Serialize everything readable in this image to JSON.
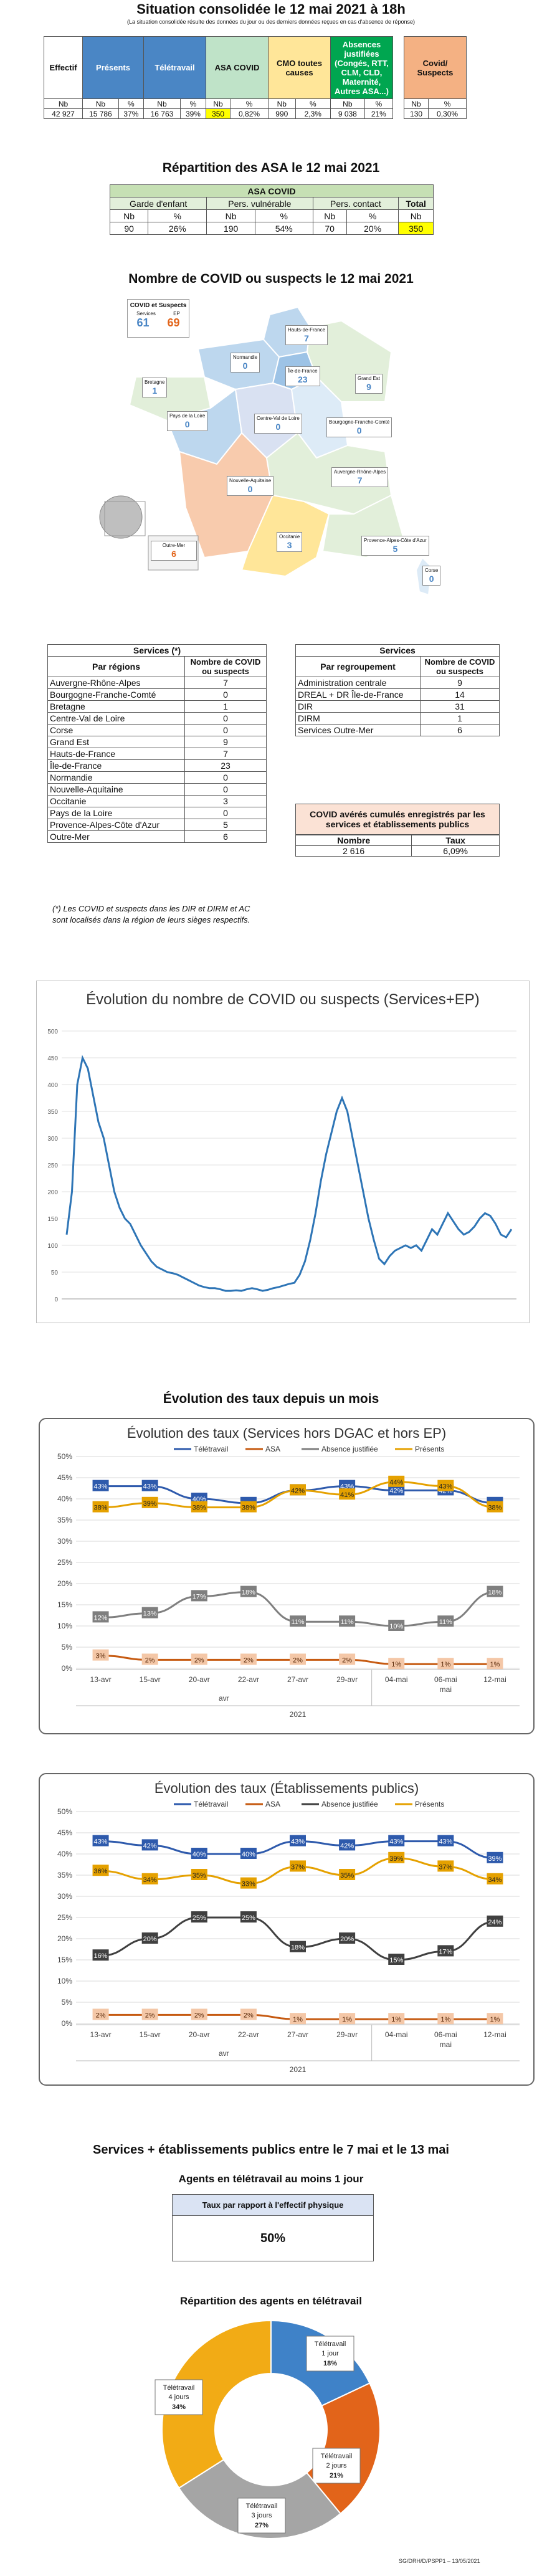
{
  "header": {
    "title": "Situation consolidée le 12 mai 2021 à 18h",
    "note": "(La situation consolidée résulte des données du jour ou des derniers données reçues en cas d'absence de réponse)"
  },
  "situation": {
    "headers": {
      "effectif": "Effectif",
      "presents": "Présents",
      "teletravail": "Télétravail",
      "asa": "ASA COVID",
      "cmo": "CMO toutes causes",
      "absences": "Absences justifiées (Congés, RTT, CLM, CLD, Maternité, Autres ASA...)",
      "covid": "Covid/ Suspects"
    },
    "sub": [
      "Nb",
      "Nb",
      "%",
      "Nb",
      "%",
      "Nb",
      "%",
      "Nb",
      "%",
      "Nb",
      "%",
      "Nb",
      "%"
    ],
    "values": [
      "42 927",
      "15 786",
      "37%",
      "16 763",
      "39%",
      "350",
      "0,82%",
      "990",
      "2,3%",
      "9 038",
      "21%",
      "130",
      "0,30%"
    ],
    "colors": {
      "presents": "#4a86c5",
      "asa": "#bfe3c8",
      "cmo": "#ffe699",
      "absences": "#00a650",
      "covid": "#f4b183",
      "highlight": "#ffff00"
    }
  },
  "asa": {
    "title": "Répartition des ASA le 12 mai 2021",
    "table_title": "ASA COVID",
    "groups": [
      "Garde d'enfant",
      "Pers. vulnérable",
      "Pers. contact",
      "Total"
    ],
    "sub": [
      "Nb",
      "%",
      "Nb",
      "%",
      "Nb",
      "%",
      "Nb"
    ],
    "values": [
      "90",
      "26%",
      "190",
      "54%",
      "70",
      "20%",
      "350"
    ]
  },
  "map": {
    "title": "Nombre de COVID ou suspects le 12 mai 2021",
    "legend": {
      "title": "COVID et Suspects",
      "a_label": "Services",
      "b_label": "EP",
      "a_value": "61",
      "b_value": "69"
    },
    "regions": [
      {
        "name": "Hauts-de-France",
        "value": "7"
      },
      {
        "name": "Normandie",
        "value": "0"
      },
      {
        "name": "Bretagne",
        "value": "1"
      },
      {
        "name": "Île-de-France",
        "value": "23"
      },
      {
        "name": "Grand Est",
        "value": "9"
      },
      {
        "name": "Pays de la Loire",
        "value": "0"
      },
      {
        "name": "Centre-Val de Loire",
        "value": "0"
      },
      {
        "name": "Bourgogne-Franche-Comté",
        "value": "0"
      },
      {
        "name": "Nouvelle-Aquitaine",
        "value": "0"
      },
      {
        "name": "Auvergne-Rhône-Alpes",
        "value": "7"
      },
      {
        "name": "Occitanie",
        "value": "3"
      },
      {
        "name": "Provence-Alpes-Côte d'Azur",
        "value": "5"
      },
      {
        "name": "Corse",
        "value": "0"
      }
    ],
    "outre_mer": {
      "label": "Outre-Mer",
      "value": "6"
    }
  },
  "services_regions": {
    "title": "Services (*)",
    "col1": "Par régions",
    "col2": "Nombre de COVID ou suspects",
    "rows": [
      [
        "Auvergne-Rhône-Alpes",
        "7"
      ],
      [
        "Bourgogne-Franche-Comté",
        "0"
      ],
      [
        "Bretagne",
        "1"
      ],
      [
        "Centre-Val de Loire",
        "0"
      ],
      [
        "Corse",
        "0"
      ],
      [
        "Grand Est",
        "9"
      ],
      [
        "Hauts-de-France",
        "7"
      ],
      [
        "Île-de-France",
        "23"
      ],
      [
        "Normandie",
        "0"
      ],
      [
        "Nouvelle-Aquitaine",
        "0"
      ],
      [
        "Occitanie",
        "3"
      ],
      [
        "Pays de la Loire",
        "0"
      ],
      [
        "Provence-Alpes-Côte d'Azur",
        "5"
      ],
      [
        "Outre-Mer",
        "6"
      ]
    ],
    "footnote": "(*) Les COVID et suspects dans les DIR et DIRM et AC sont localisés dans la région de leurs sièges respectifs."
  },
  "services_groups": {
    "title": "Services",
    "col1": "Par regroupement",
    "col2": "Nombre de COVID ou suspects",
    "rows": [
      [
        "Administration centrale",
        "9"
      ],
      [
        "DREAL + DR Île-de-France",
        "14"
      ],
      [
        "DIR",
        "31"
      ],
      [
        "DIRM",
        "1"
      ],
      [
        "Services Outre-Mer",
        "6"
      ]
    ]
  },
  "ep_box": {
    "title": "COVID avérés cumulés enregistrés par les services et établissements publics",
    "col1": "Nombre",
    "col2": "Taux",
    "nombre": "2 616",
    "taux": "6,09%"
  },
  "chart_data": [
    {
      "type": "line",
      "title": "Évolution du nombre de COVID ou suspects (Services+EP)",
      "ylim": [
        0,
        500
      ],
      "yticks": [
        "0",
        "50",
        "100",
        "150",
        "200",
        "250",
        "300",
        "350",
        "400",
        "450",
        "500"
      ],
      "series": [
        {
          "values": [
            120,
            200,
            400,
            450,
            430,
            380,
            330,
            300,
            250,
            200,
            170,
            150,
            140,
            120,
            100,
            85,
            70,
            60,
            55,
            50,
            48,
            45,
            40,
            35,
            30,
            25,
            22,
            20,
            20,
            18,
            15,
            15,
            16,
            15,
            18,
            20,
            18,
            15,
            17,
            20,
            22,
            25,
            28,
            30,
            45,
            70,
            110,
            160,
            220,
            270,
            310,
            350,
            375,
            350,
            300,
            250,
            200,
            150,
            110,
            75,
            65,
            80,
            90,
            95,
            100,
            95,
            100,
            90,
            110,
            130,
            120,
            140,
            160,
            145,
            130,
            120,
            125,
            135,
            150,
            160,
            155,
            140,
            120,
            115,
            130
          ]
        }
      ]
    },
    {
      "type": "line",
      "title": "Évolution des taux (Services hors DGAC et hors EP)",
      "categories": [
        "13-avr",
        "15-avr",
        "20-avr",
        "22-avr",
        "27-avr",
        "29-avr",
        "04-mai",
        "06-mai",
        "12-mai"
      ],
      "groups": [
        "avr",
        "mai"
      ],
      "year": "2021",
      "ylim": [
        0,
        50
      ],
      "yticks": [
        "0%",
        "5%",
        "10%",
        "15%",
        "20%",
        "25%",
        "30%",
        "35%",
        "40%",
        "45%",
        "50%"
      ],
      "series": [
        {
          "name": "Télétravail",
          "color": "#2e5aac",
          "values": [
            43,
            43,
            40,
            39,
            42,
            43,
            42,
            42,
            39
          ]
        },
        {
          "name": "ASA",
          "color": "#c65a11",
          "values": [
            3,
            2,
            2,
            2,
            2,
            2,
            1,
            1,
            1
          ]
        },
        {
          "name": "Absence justifiée",
          "color": "#7f7f7f",
          "values": [
            12,
            13,
            17,
            18,
            11,
            11,
            10,
            11,
            18
          ]
        },
        {
          "name": "Présents",
          "color": "#e5a100",
          "values": [
            38,
            39,
            38,
            38,
            42,
            41,
            44,
            43,
            38
          ]
        }
      ]
    },
    {
      "type": "line",
      "title": "Évolution des taux (Établissements publics)",
      "categories": [
        "13-avr",
        "15-avr",
        "20-avr",
        "22-avr",
        "27-avr",
        "29-avr",
        "04-mai",
        "06-mai",
        "12-mai"
      ],
      "groups": [
        "avr",
        "mai"
      ],
      "year": "2021",
      "ylim": [
        0,
        50
      ],
      "yticks": [
        "0%",
        "5%",
        "10%",
        "15%",
        "20%",
        "25%",
        "30%",
        "35%",
        "40%",
        "45%",
        "50%"
      ],
      "series": [
        {
          "name": "Télétravail",
          "color": "#2e5aac",
          "values": [
            43,
            42,
            40,
            40,
            43,
            42,
            43,
            43,
            39
          ]
        },
        {
          "name": "ASA",
          "color": "#c65a11",
          "values": [
            2,
            2,
            2,
            2,
            1,
            1,
            1,
            1,
            1
          ]
        },
        {
          "name": "Absence justifiée",
          "color": "#404040",
          "values": [
            16,
            20,
            25,
            25,
            18,
            20,
            15,
            17,
            24
          ]
        },
        {
          "name": "Présents",
          "color": "#e5a100",
          "values": [
            36,
            34,
            35,
            33,
            37,
            35,
            39,
            37,
            34
          ]
        }
      ]
    },
    {
      "type": "pie",
      "title": "Répartition des agents en télétravail",
      "slices": [
        {
          "label": "Télétravail 1 jour",
          "value": 18,
          "text": "18%",
          "color": "#3f82c8"
        },
        {
          "label": "Télétravail 2 jours",
          "value": 21,
          "text": "21%",
          "color": "#e2641a"
        },
        {
          "label": "Télétravail 3 jours",
          "value": 27,
          "text": "27%",
          "color": "#a5a5a5"
        },
        {
          "label": "Télétravail 4 jours",
          "value": 34,
          "text": "34%",
          "color": "#f2ab15"
        }
      ]
    }
  ],
  "line_section": {
    "title": "Évolution des taux depuis un mois"
  },
  "weekly": {
    "title": "Services + établissements publics entre le 7 mai et le 13 mai",
    "subtitle": "Agents en télétravail au moins 1 jour",
    "box_header": "Taux par rapport à l'effectif physique",
    "box_value": "50%"
  },
  "footer": {
    "ref": "SG/DRH/D/PSPP1 – 13/05/2021"
  }
}
